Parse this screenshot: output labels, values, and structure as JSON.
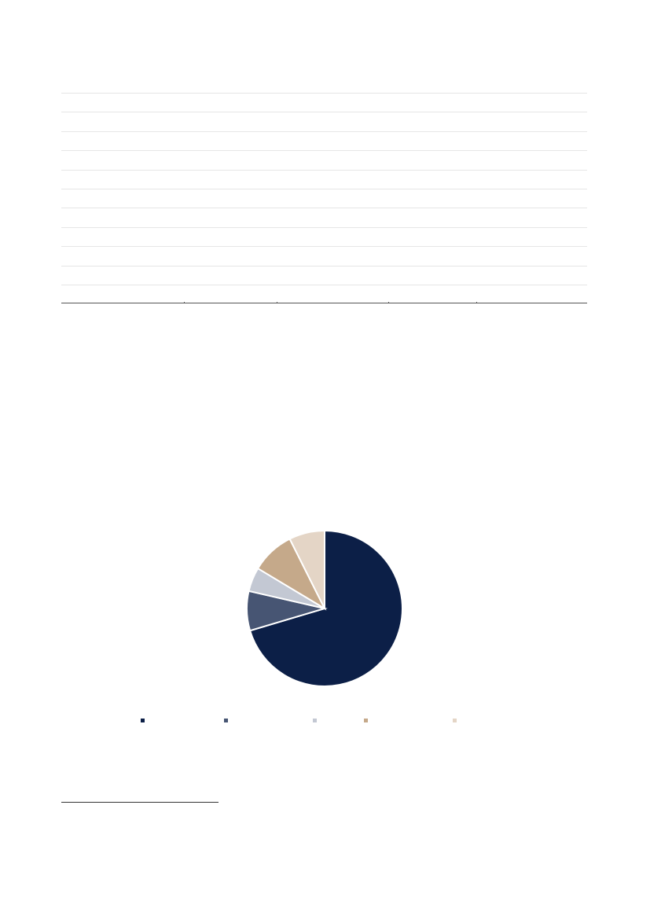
{
  "table": {
    "row_count": 11
  },
  "chart_data": {
    "type": "pie",
    "title": "",
    "slices": [
      {
        "label": "",
        "value": 70.4,
        "color": "#0c1f47"
      },
      {
        "label": "",
        "value": 8.2,
        "color": "#475573"
      },
      {
        "label": "",
        "value": 5.0,
        "color": "#c3c8d3"
      },
      {
        "label": "",
        "value": 9.0,
        "color": "#c5a98a"
      },
      {
        "label": "",
        "value": 7.4,
        "color": "#e4d5c6"
      }
    ],
    "start_angle": "top, clockwise",
    "legend": "bottom"
  }
}
